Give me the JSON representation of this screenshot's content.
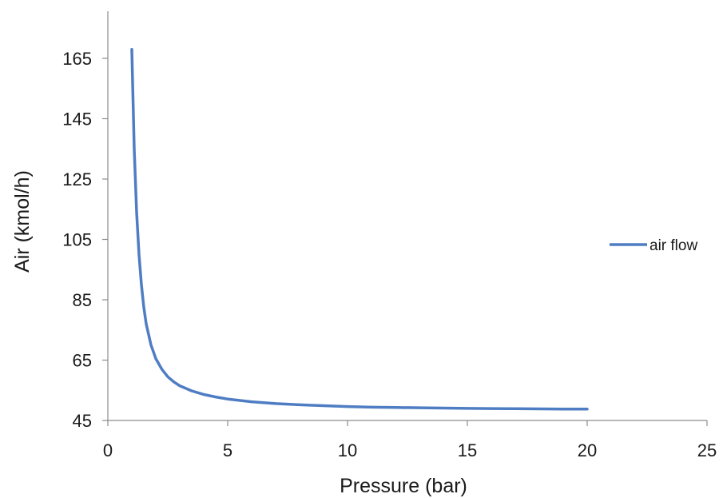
{
  "chart_data": {
    "type": "line",
    "title": "",
    "xlabel": "Pressure (bar)",
    "ylabel": "Air (kmol/h)",
    "xlim": [
      0,
      25
    ],
    "ylim": [
      45,
      180
    ],
    "xticks": [
      0,
      5,
      10,
      15,
      20,
      25
    ],
    "yticks": [
      45,
      65,
      85,
      105,
      125,
      145,
      165
    ],
    "grid": false,
    "legend_position": "right",
    "series": [
      {
        "name": "air flow",
        "color": "#4f7dc3",
        "x": [
          1.0,
          1.1,
          1.2,
          1.3,
          1.4,
          1.5,
          1.6,
          1.8,
          2.0,
          2.25,
          2.5,
          2.75,
          3.0,
          3.5,
          4.0,
          4.5,
          5.0,
          6.0,
          7.0,
          8.0,
          9.0,
          10.0,
          11.0,
          12.0,
          13.0,
          14.0,
          15.0,
          16.0,
          17.0,
          18.0,
          19.0,
          20.0
        ],
        "y": [
          168.0,
          135.0,
          114.0,
          100.0,
          90.0,
          82.5,
          77.0,
          70.0,
          65.5,
          62.0,
          59.5,
          57.8,
          56.5,
          54.8,
          53.6,
          52.8,
          52.1,
          51.2,
          50.6,
          50.2,
          49.9,
          49.6,
          49.4,
          49.3,
          49.2,
          49.1,
          49.0,
          48.95,
          48.9,
          48.85,
          48.8,
          48.75
        ]
      }
    ]
  }
}
